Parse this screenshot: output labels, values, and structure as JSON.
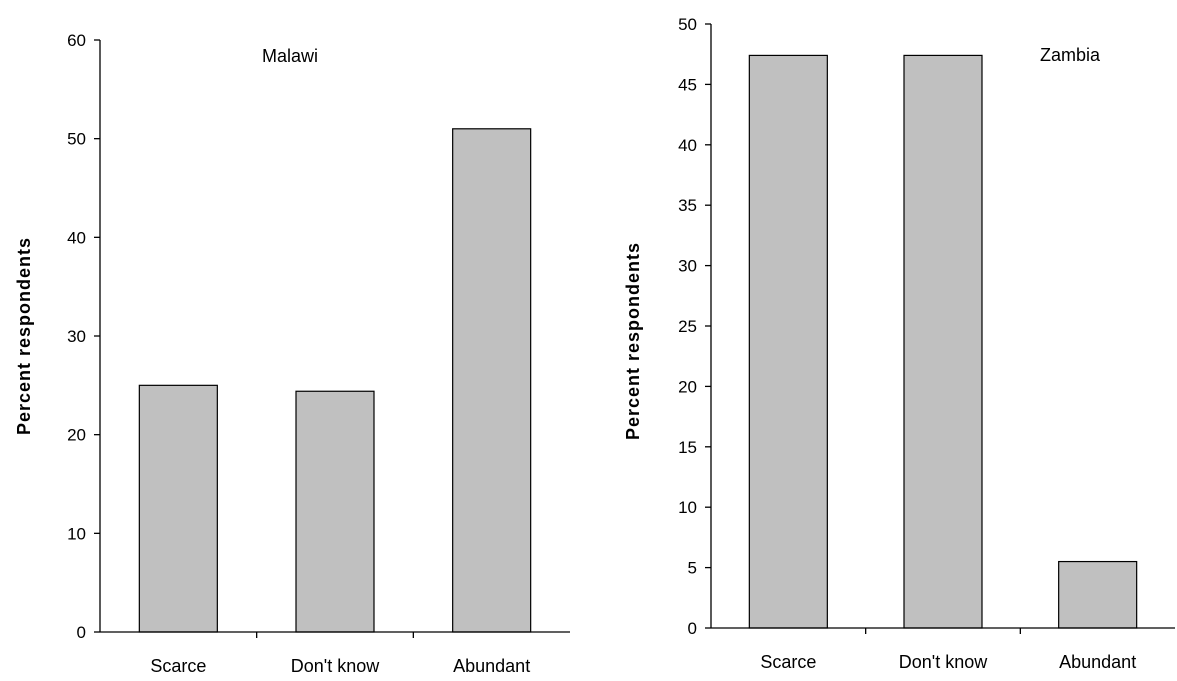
{
  "chart_data": [
    {
      "type": "bar",
      "title": "Malawi",
      "ylabel": "Percent respondents",
      "xlabel": "",
      "categories": [
        "Scarce",
        "Don't know",
        "Abundant"
      ],
      "values": [
        25,
        24.4,
        51
      ],
      "ylim": [
        0,
        60
      ],
      "yticks": [
        "0",
        "10",
        "20",
        "30",
        "40",
        "50",
        "60"
      ],
      "grid": false,
      "bar_color": "#c0c0c0"
    },
    {
      "type": "bar",
      "title": "Zambia",
      "ylabel": "Percent respondents",
      "xlabel": "",
      "categories": [
        "Scarce",
        "Don't know",
        "Abundant"
      ],
      "values": [
        47.4,
        47.4,
        5.5
      ],
      "ylim": [
        0,
        50
      ],
      "yticks": [
        "0",
        "5",
        "10",
        "15",
        "20",
        "25",
        "30",
        "35",
        "40",
        "45",
        "50"
      ],
      "grid": false,
      "bar_color": "#c0c0c0"
    }
  ]
}
